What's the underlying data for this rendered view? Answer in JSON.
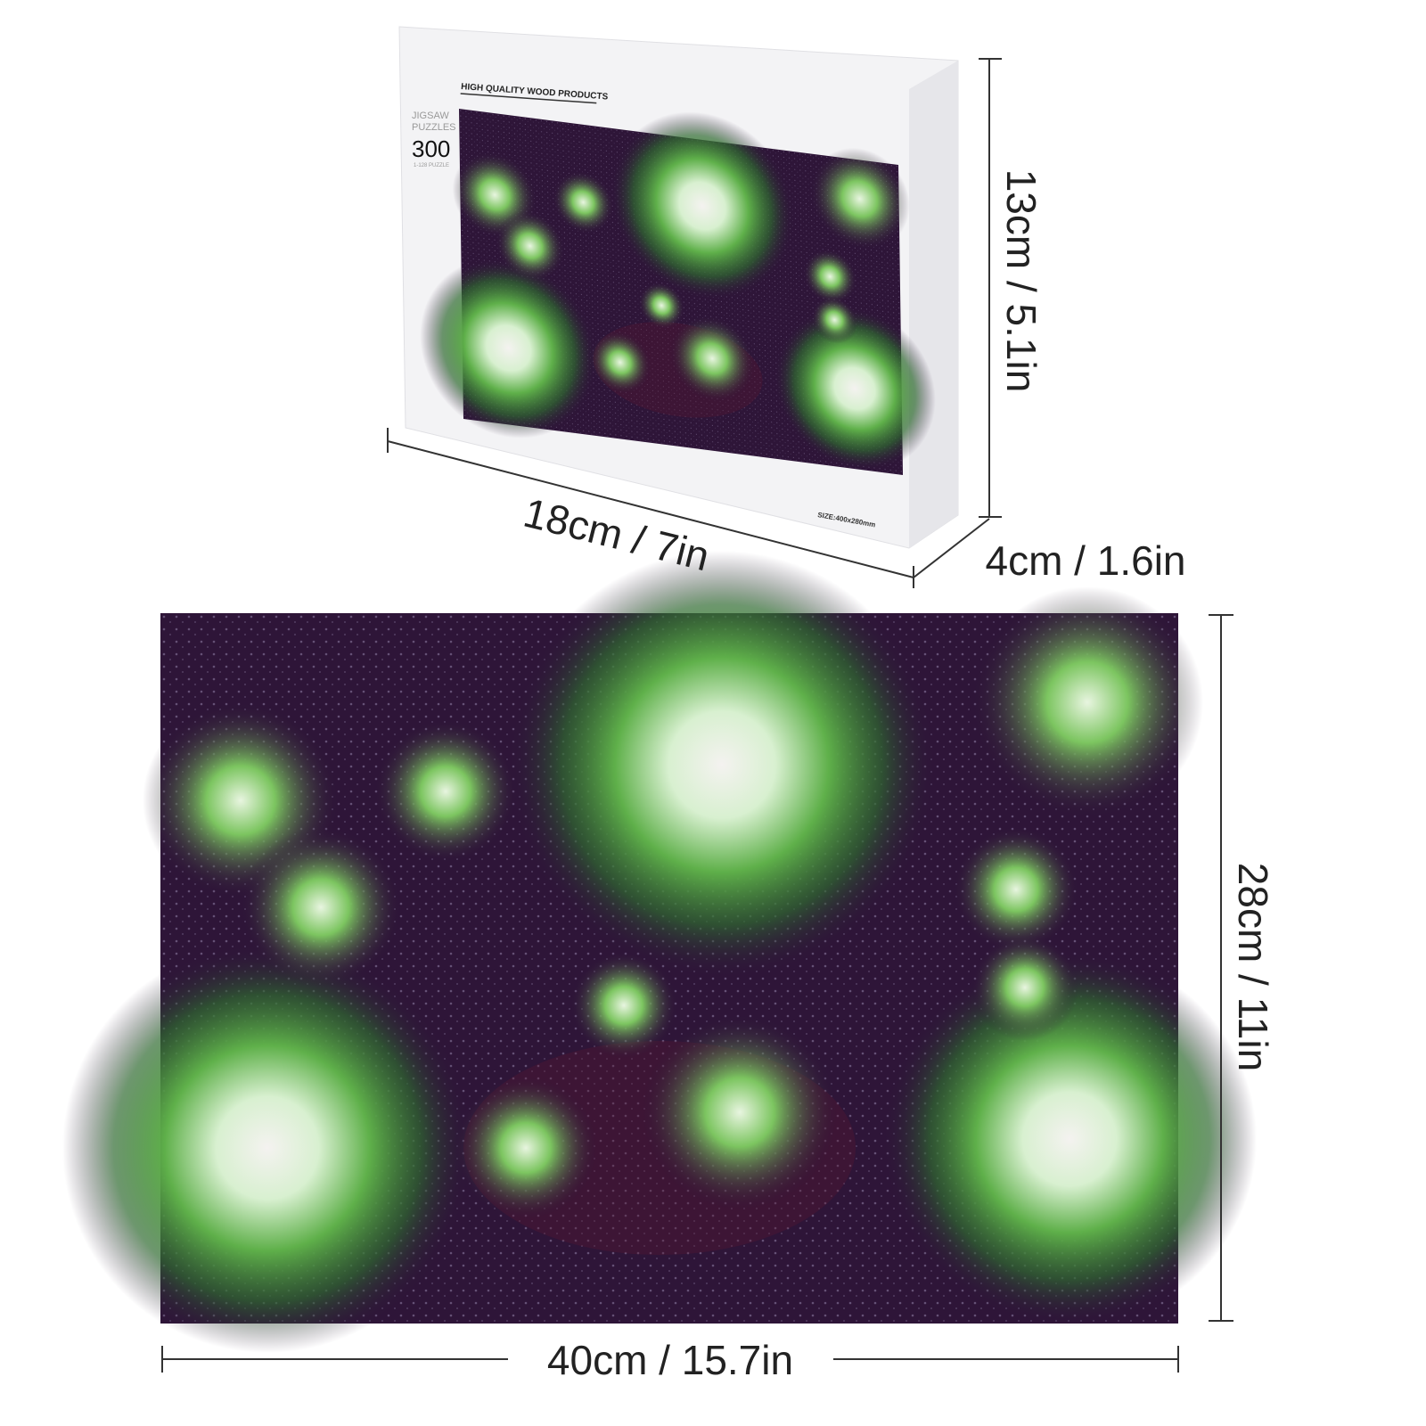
{
  "box": {
    "header": "HIGH QUALITY WOOD PRODUCTS",
    "brand_line1": "JIGSAW",
    "brand_line2": "PUZZLES",
    "piece_count": "300",
    "piece_sub": "1-128 PUZZLE",
    "size_label": "SIZE:400x280mm"
  },
  "dimensions": {
    "box_height": "13cm / 5.1in",
    "box_width": "18cm / 7in",
    "box_depth": "4cm / 1.6in",
    "puzzle_height": "28cm / 11in",
    "puzzle_width": "40cm / 15.7in"
  },
  "colors": {
    "background": "#2e1538",
    "green": "#6fc25a",
    "white_glow": "#eef6ee"
  }
}
